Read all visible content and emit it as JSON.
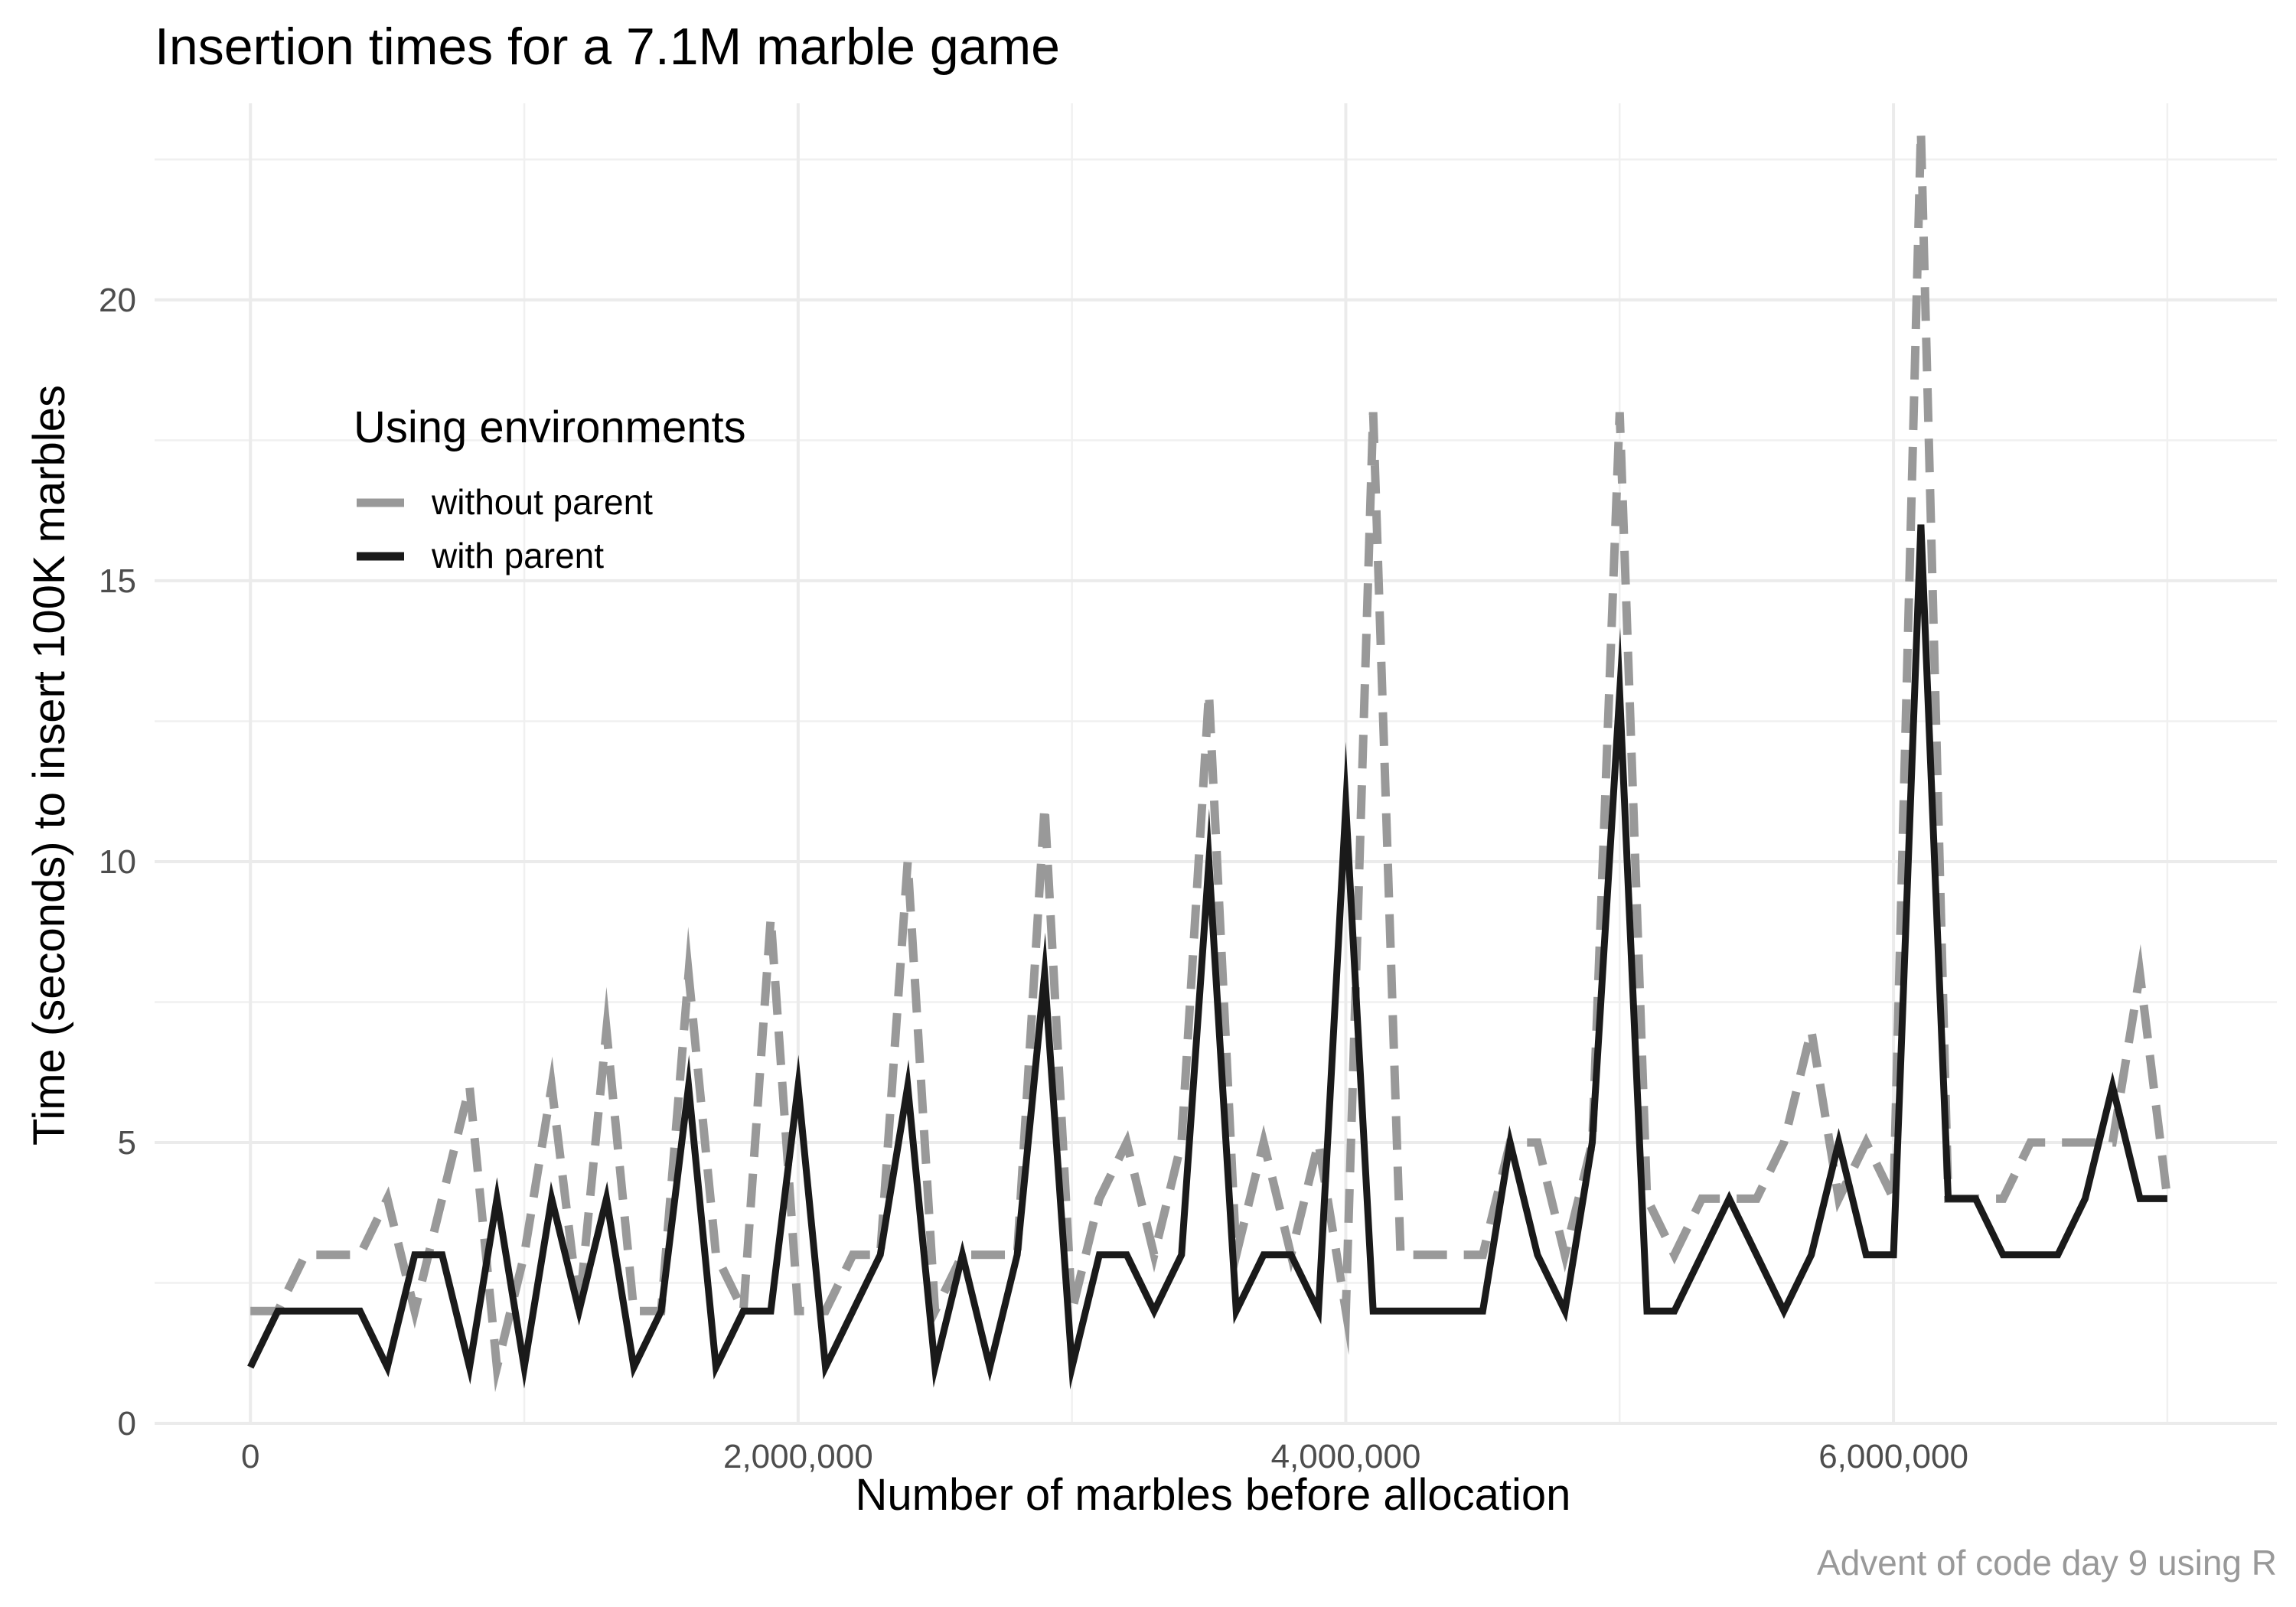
{
  "chart_data": {
    "type": "line",
    "title": "Insertion times for a 7.1M marble game",
    "xlabel": "Number of marbles before allocation",
    "ylabel": "Time (seconds) to insert 100K marbles",
    "caption": "Advent of code day 9 using R",
    "xlim": [
      -350000,
      7400000
    ],
    "ylim": [
      0,
      23.5
    ],
    "x_ticks": [
      0,
      2000000,
      4000000,
      6000000
    ],
    "x_tick_labels": [
      "0",
      "2,000,000",
      "4,000,000",
      "6,000,000"
    ],
    "y_ticks": [
      0,
      5,
      10,
      15,
      20
    ],
    "y_tick_labels": [
      "0",
      "5",
      "10",
      "15",
      "20"
    ],
    "grid": true,
    "legend": {
      "title": "Using environments",
      "position": "upper-left",
      "entries": [
        "without parent",
        "with parent"
      ]
    },
    "x": [
      0,
      100000,
      200000,
      300000,
      400000,
      500000,
      600000,
      700000,
      800000,
      900000,
      1000000,
      1100000,
      1200000,
      1300000,
      1400000,
      1500000,
      1600000,
      1700000,
      1800000,
      1900000,
      2000000,
      2100000,
      2200000,
      2300000,
      2400000,
      2500000,
      2600000,
      2700000,
      2800000,
      2900000,
      3000000,
      3100000,
      3200000,
      3300000,
      3400000,
      3500000,
      3600000,
      3700000,
      3800000,
      3900000,
      4000000,
      4100000,
      4200000,
      4300000,
      4400000,
      4500000,
      4600000,
      4700000,
      4800000,
      4900000,
      5000000,
      5100000,
      5200000,
      5300000,
      5400000,
      5500000,
      5600000,
      5700000,
      5800000,
      5900000,
      6000000,
      6100000,
      6200000,
      6300000,
      6400000,
      6500000,
      6600000,
      6700000,
      6800000,
      6900000,
      7000000
    ],
    "series": [
      {
        "name": "without parent",
        "color": "#999999",
        "dash": "dashed",
        "values": [
          2,
          2,
          3,
          3,
          3,
          4,
          2,
          4,
          6,
          1,
          3,
          6,
          2,
          7,
          2,
          2,
          8,
          3,
          2,
          9,
          2,
          2,
          3,
          3,
          10,
          2,
          3,
          3,
          3,
          11,
          2,
          4,
          5,
          3,
          5,
          13,
          3,
          5,
          3,
          5,
          2,
          18,
          3,
          3,
          3,
          3,
          5,
          5,
          3,
          5,
          18,
          4,
          3,
          4,
          4,
          4,
          5,
          7,
          4,
          5,
          4,
          23,
          4,
          4,
          4,
          5,
          5,
          5,
          5,
          8,
          4
        ]
      },
      {
        "name": "with parent",
        "color": "#1a1a1a",
        "dash": "solid",
        "values": [
          1,
          2,
          2,
          2,
          2,
          1,
          3,
          3,
          1,
          4,
          1,
          4,
          2,
          4,
          1,
          2,
          6,
          1,
          2,
          2,
          6,
          1,
          2,
          3,
          6,
          1,
          3,
          1,
          3,
          8,
          1,
          3,
          3,
          2,
          3,
          10,
          2,
          3,
          3,
          2,
          11,
          2,
          2,
          2,
          2,
          2,
          5,
          3,
          2,
          5,
          13,
          2,
          2,
          3,
          4,
          3,
          2,
          3,
          5,
          3,
          3,
          16,
          4,
          4,
          3,
          3,
          3,
          4,
          6,
          4,
          4
        ]
      }
    ]
  }
}
